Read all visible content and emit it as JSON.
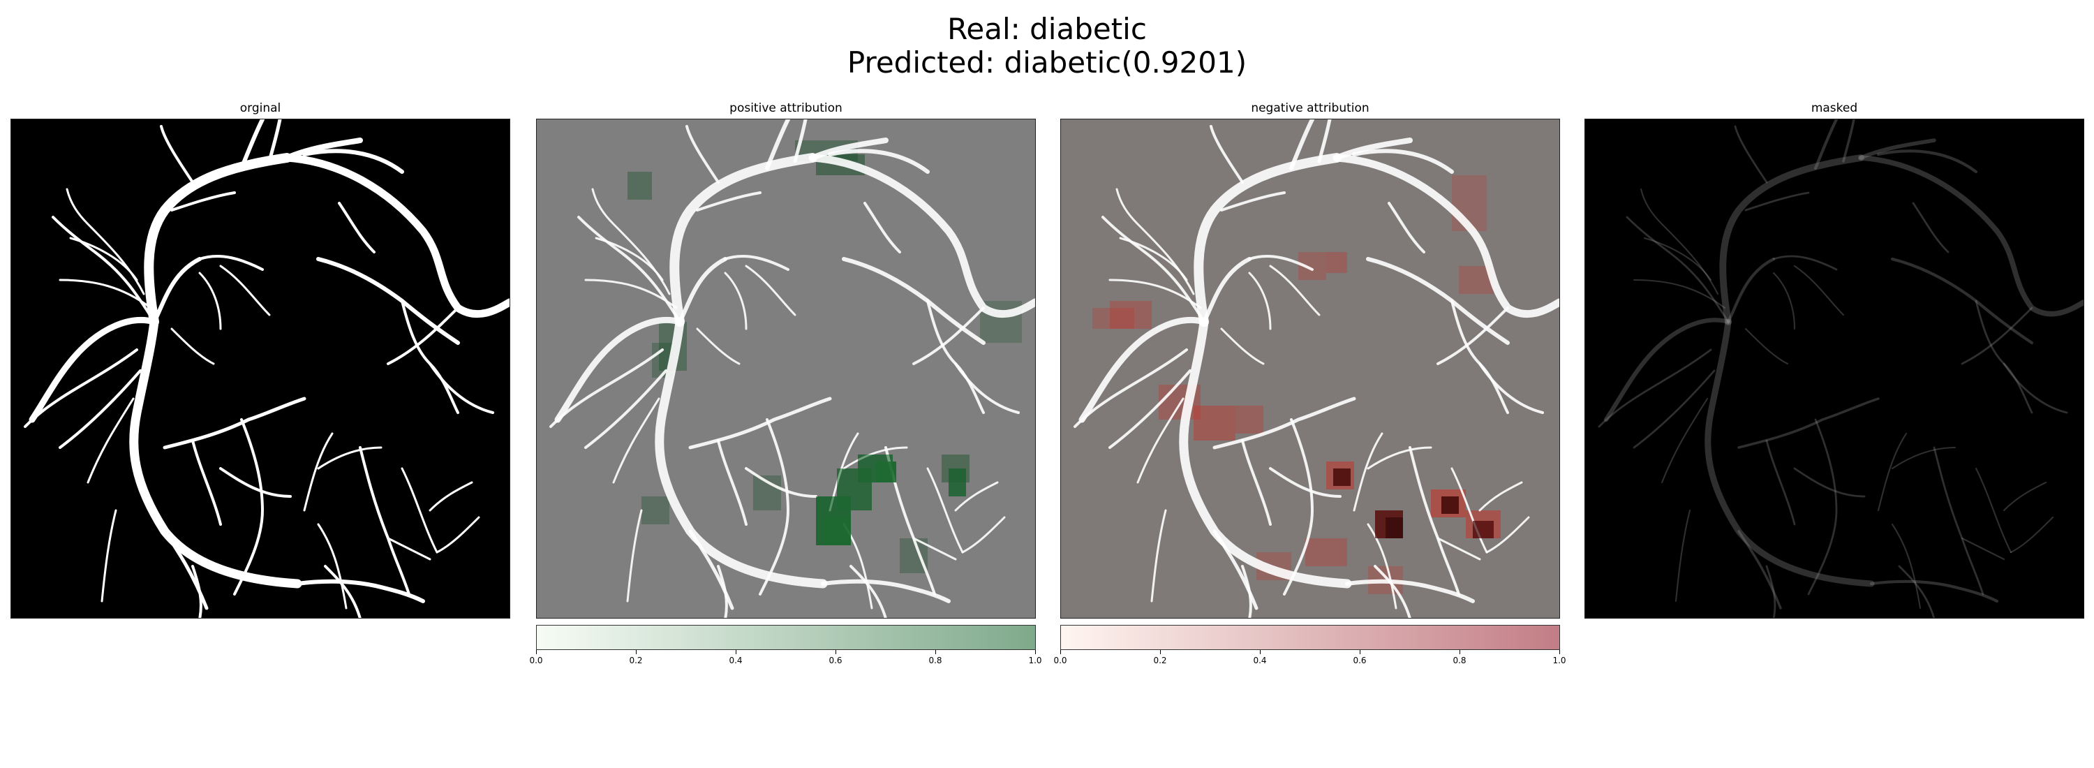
{
  "figure": {
    "title_line1": "Real: diabetic",
    "title_line2": "Predicted: diabetic(0.9201)"
  },
  "panels": [
    {
      "title": "orginal"
    },
    {
      "title": "positive attribution"
    },
    {
      "title": "negative attribution"
    },
    {
      "title": "masked"
    }
  ],
  "colorbars": {
    "positive": {
      "ticks": [
        "0.0",
        "0.2",
        "0.4",
        "0.6",
        "0.8",
        "1.0"
      ],
      "color_low": "#f7fcf5",
      "color_high": "#7fa98b"
    },
    "negative": {
      "ticks": [
        "0.0",
        "0.2",
        "0.4",
        "0.6",
        "0.8",
        "1.0"
      ],
      "color_low": "#fff5f0",
      "color_high": "#c27d85"
    }
  },
  "colors": {
    "background_original": "#000000",
    "background_attribution": "#7f7f7f",
    "vessel": "#ffffff",
    "positive_hot": "#0c4a1f",
    "negative_hot": "#3a0c0c"
  }
}
